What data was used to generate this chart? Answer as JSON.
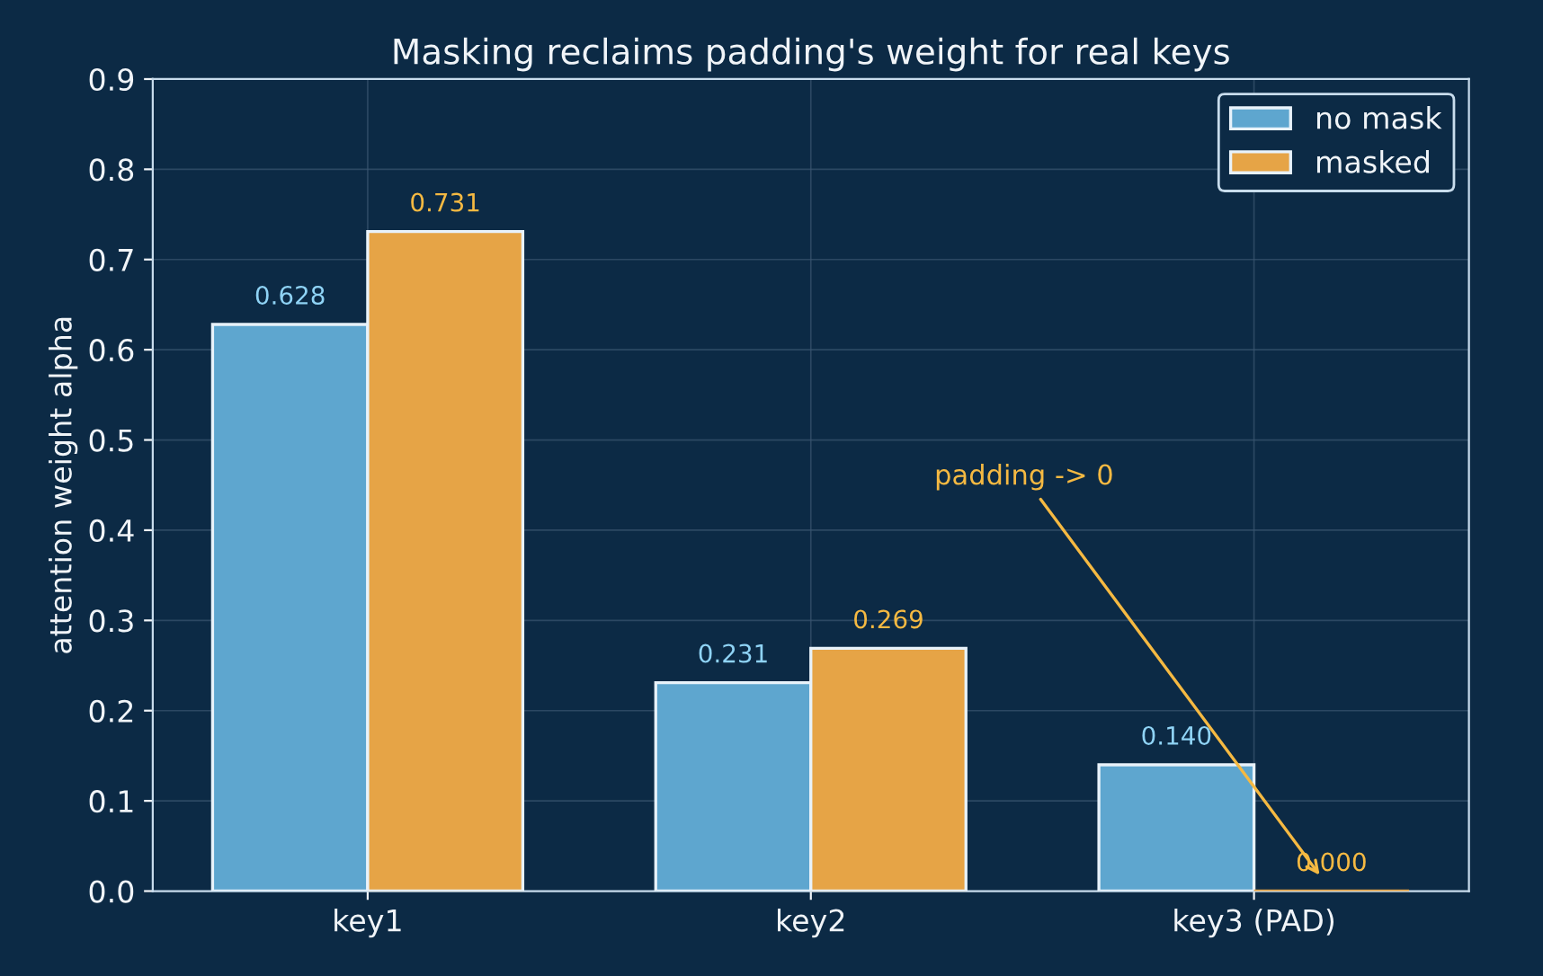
{
  "chart_data": {
    "type": "bar",
    "title": "Masking reclaims padding's weight for real keys",
    "ylabel": "attention weight alpha",
    "categories": [
      "key1",
      "key2",
      "key3 (PAD)"
    ],
    "series": [
      {
        "name": "no mask",
        "color": "#5ea6cf",
        "values": [
          0.628,
          0.231,
          0.14
        ],
        "value_labels": [
          "0.628",
          "0.231",
          "0.140"
        ]
      },
      {
        "name": "masked",
        "color": "#e6a446",
        "values": [
          0.731,
          0.269,
          0.0
        ],
        "value_labels": [
          "0.731",
          "0.269",
          "0.000"
        ]
      }
    ],
    "ylim": [
      0,
      0.9
    ],
    "yticks": [
      {
        "value": 0,
        "label": "0.0"
      },
      0.1,
      0.2,
      0.3,
      0.4,
      0.5,
      0.6,
      0.7,
      0.8,
      0.9
    ],
    "annotations": [
      "padding -> 0"
    ],
    "grid": true,
    "legend": "top right"
  }
}
